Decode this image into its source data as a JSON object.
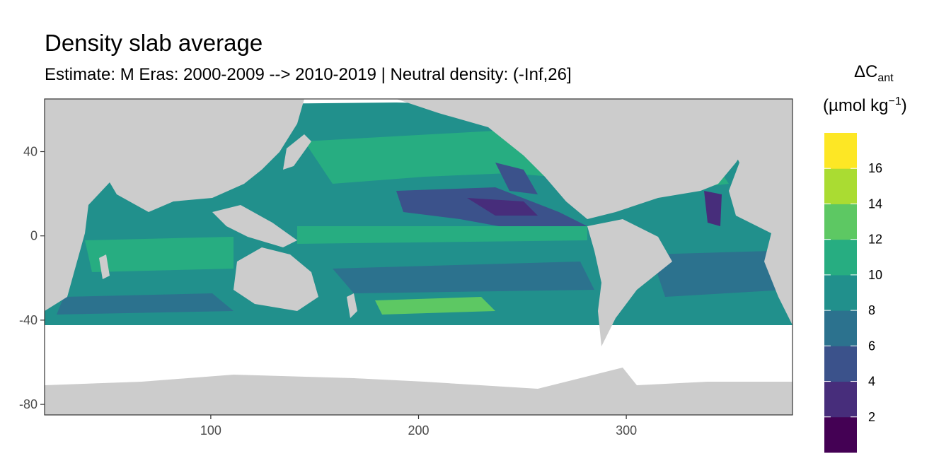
{
  "title": "Density slab average",
  "subtitle": "Estimate: M Eras: 2000-2009 --> 2010-2019 | Neutral density: (-Inf,26]",
  "legend": {
    "title_symbol": "ΔC",
    "title_subscript": "ant",
    "unit_prefix": "(µmol kg",
    "unit_superscript": "−1",
    "unit_suffix": ")",
    "breaks": [
      "2",
      "4",
      "6",
      "8",
      "10",
      "12",
      "14",
      "16"
    ],
    "colors": [
      "#440154",
      "#472D7B",
      "#3B528B",
      "#2C728E",
      "#21908C",
      "#27AD81",
      "#5DC863",
      "#AADC32",
      "#FDE725"
    ]
  },
  "chart_data": {
    "type": "heatmap",
    "variable": "ΔCant",
    "x_ticks": [
      "100",
      "200",
      "300"
    ],
    "y_ticks": [
      "40",
      "0",
      "-40",
      "-80"
    ],
    "xlim": [
      20,
      380
    ],
    "ylim": [
      -85,
      65
    ],
    "colors": {
      "land": "#CCCCCC",
      "no_data": "#FFFFFF",
      "grid": "#EBEBEB"
    }
  }
}
